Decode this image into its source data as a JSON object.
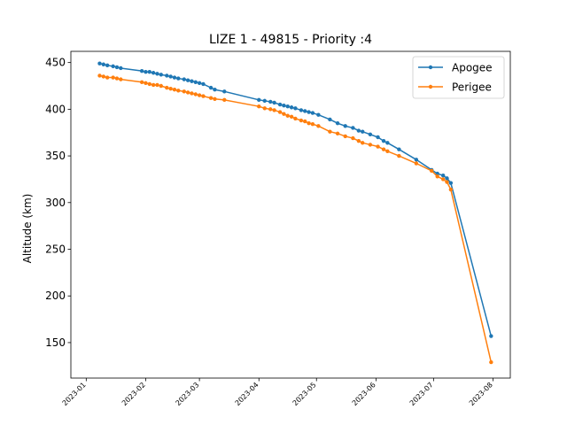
{
  "chart_data": {
    "type": "line",
    "title": "LIZE 1 - 49815 - Priority :4",
    "xlabel": "",
    "ylabel": "Altitude (km)",
    "xlim": [
      "2022-12-24",
      "2023-08-10"
    ],
    "ylim": [
      112,
      462
    ],
    "grid": false,
    "legend_position": "top-right",
    "x_ticks": [
      "2023-01",
      "2023-02",
      "2023-03",
      "2023-04",
      "2023-05",
      "2023-06",
      "2023-07",
      "2023-08"
    ],
    "y_ticks": [
      150,
      200,
      250,
      300,
      350,
      400,
      450
    ],
    "series": [
      {
        "name": "Apogee",
        "color": "#1f77b4",
        "x": [
          "2023-01-08",
          "2023-01-10",
          "2023-01-12",
          "2023-01-15",
          "2023-01-17",
          "2023-01-19",
          "2023-01-30",
          "2023-02-01",
          "2023-02-03",
          "2023-02-05",
          "2023-02-07",
          "2023-02-09",
          "2023-02-12",
          "2023-02-14",
          "2023-02-16",
          "2023-02-18",
          "2023-02-21",
          "2023-02-23",
          "2023-02-25",
          "2023-02-27",
          "2023-03-01",
          "2023-03-03",
          "2023-03-07",
          "2023-03-09",
          "2023-03-14",
          "2023-04-01",
          "2023-04-04",
          "2023-04-07",
          "2023-04-09",
          "2023-04-12",
          "2023-04-14",
          "2023-04-16",
          "2023-04-18",
          "2023-04-20",
          "2023-04-23",
          "2023-04-25",
          "2023-04-27",
          "2023-04-29",
          "2023-05-02",
          "2023-05-08",
          "2023-05-12",
          "2023-05-16",
          "2023-05-20",
          "2023-05-23",
          "2023-05-25",
          "2023-05-29",
          "2023-06-02",
          "2023-06-05",
          "2023-06-07",
          "2023-06-13",
          "2023-06-22",
          "2023-06-30",
          "2023-07-03",
          "2023-07-06",
          "2023-07-08",
          "2023-07-10",
          "2023-07-31"
        ],
        "values": [
          449,
          448,
          447,
          446,
          445,
          444,
          441,
          440,
          440,
          439,
          438,
          437,
          436,
          435,
          434,
          433,
          432,
          431,
          430,
          429,
          428,
          427,
          423,
          421,
          419,
          410,
          409,
          408,
          407,
          405,
          404,
          403,
          402,
          401,
          399,
          398,
          397,
          396,
          394,
          389,
          385,
          382,
          380,
          377,
          376,
          373,
          370,
          366,
          364,
          357,
          346,
          335,
          331,
          329,
          326,
          321,
          157
        ]
      },
      {
        "name": "Perigee",
        "color": "#ff7f0e",
        "x": [
          "2023-01-08",
          "2023-01-10",
          "2023-01-12",
          "2023-01-15",
          "2023-01-17",
          "2023-01-19",
          "2023-01-30",
          "2023-02-01",
          "2023-02-03",
          "2023-02-05",
          "2023-02-07",
          "2023-02-09",
          "2023-02-12",
          "2023-02-14",
          "2023-02-16",
          "2023-02-18",
          "2023-02-21",
          "2023-02-23",
          "2023-02-25",
          "2023-02-27",
          "2023-03-01",
          "2023-03-03",
          "2023-03-07",
          "2023-03-09",
          "2023-03-14",
          "2023-04-01",
          "2023-04-04",
          "2023-04-07",
          "2023-04-09",
          "2023-04-12",
          "2023-04-14",
          "2023-04-16",
          "2023-04-18",
          "2023-04-20",
          "2023-04-23",
          "2023-04-25",
          "2023-04-27",
          "2023-04-29",
          "2023-05-02",
          "2023-05-08",
          "2023-05-12",
          "2023-05-16",
          "2023-05-20",
          "2023-05-23",
          "2023-05-25",
          "2023-05-29",
          "2023-06-02",
          "2023-06-05",
          "2023-06-07",
          "2023-06-13",
          "2023-06-22",
          "2023-06-30",
          "2023-07-03",
          "2023-07-06",
          "2023-07-08",
          "2023-07-10",
          "2023-07-31"
        ],
        "values": [
          436,
          435,
          434,
          434,
          433,
          432,
          429,
          428,
          427,
          426,
          426,
          425,
          423,
          422,
          421,
          420,
          419,
          418,
          417,
          416,
          415,
          414,
          412,
          411,
          410,
          403,
          401,
          400,
          399,
          397,
          395,
          393,
          392,
          390,
          388,
          387,
          385,
          384,
          382,
          376,
          374,
          371,
          369,
          366,
          364,
          362,
          360,
          357,
          355,
          350,
          342,
          334,
          328,
          325,
          322,
          314,
          129
        ]
      }
    ]
  }
}
